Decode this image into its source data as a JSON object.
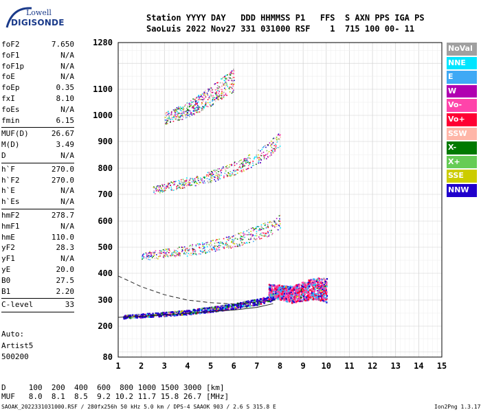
{
  "logo": {
    "line1": "Lowell",
    "line2": "DIGISONDE"
  },
  "header": {
    "line1": "Station YYYY DAY   DDD HHMMSS P1   FFS  S AXN PPS IGA PS",
    "line2": "SaoLuis 2022 Nov27 331 031000 RSF    1  715 100 00- 11"
  },
  "params": [
    {
      "k": "foF2",
      "v": "7.650"
    },
    {
      "k": "foF1",
      "v": "N/A"
    },
    {
      "k": "foF1p",
      "v": "N/A"
    },
    {
      "k": "foE",
      "v": "N/A"
    },
    {
      "k": "foEp",
      "v": "0.35"
    },
    {
      "k": "fxI",
      "v": "8.10"
    },
    {
      "k": "foEs",
      "v": "N/A"
    },
    {
      "k": "fmin",
      "v": "6.15"
    },
    {
      "k": "MUF(D)",
      "v": "26.67"
    },
    {
      "k": "M(D)",
      "v": "3.49"
    },
    {
      "k": "D",
      "v": "N/A"
    },
    {
      "k": "h`F",
      "v": "270.0"
    },
    {
      "k": "h`F2",
      "v": "270.0"
    },
    {
      "k": "h`E",
      "v": "N/A"
    },
    {
      "k": "h`Es",
      "v": "N/A"
    },
    {
      "k": "hmF2",
      "v": "278.7"
    },
    {
      "k": "hmF1",
      "v": "N/A"
    },
    {
      "k": "hmE",
      "v": "110.0"
    },
    {
      "k": "yF2",
      "v": "28.3"
    },
    {
      "k": "yF1",
      "v": "N/A"
    },
    {
      "k": "yE",
      "v": "20.0"
    },
    {
      "k": "B0",
      "v": "27.5"
    },
    {
      "k": "B1",
      "v": "2.20"
    },
    {
      "k": "C-level",
      "v": "33"
    }
  ],
  "auto": {
    "label": "Auto:",
    "artist": "Artist5",
    "code": "500200"
  },
  "legend": [
    {
      "label": "NoVal",
      "color": "#a0a0a0"
    },
    {
      "label": "NNE",
      "color": "#00e5ff"
    },
    {
      "label": "E",
      "color": "#3fa9f5"
    },
    {
      "label": "W",
      "color": "#b000b0"
    },
    {
      "label": "Vo-",
      "color": "#ff44aa"
    },
    {
      "label": "Vo+",
      "color": "#ff0033"
    },
    {
      "label": "SSW",
      "color": "#ffb6a8"
    },
    {
      "label": "X-",
      "color": "#007a00"
    },
    {
      "label": "X+",
      "color": "#66cc55"
    },
    {
      "label": "SSE",
      "color": "#cccc00"
    },
    {
      "label": "NNW",
      "color": "#2000cc"
    }
  ],
  "footer": {
    "dist": "D     100  200  400  600  800 1000 1500 3000 [km]",
    "muf": "MUF   8.0  8.1  8.5  9.2 10.2 11.7 15.8 26.7 [MHz]",
    "info": "SAOAK_2022331031000.RSF / 280fx256h 50 kHz 5.0 km / DPS-4 SAAOK 903 / 2.6 S 315.8 E",
    "version": "Ion2Png 1.3.17"
  },
  "chart_data": {
    "type": "scatter",
    "xlim": [
      1,
      15
    ],
    "ylim": [
      80,
      1280
    ],
    "xticks": [
      "1",
      "2",
      "3",
      "4",
      "5",
      "6",
      "7",
      "8",
      "9",
      "10",
      "11",
      "12",
      "13",
      "14",
      "15"
    ],
    "yticks": [
      "80",
      "200",
      "300",
      "400",
      "500",
      "600",
      "700",
      "800",
      "900",
      "1000",
      "1100",
      "1280"
    ],
    "traces": [
      {
        "name": "F-trace",
        "x": [
          1.2,
          2,
          3,
          4,
          5,
          6,
          7,
          7.5,
          8
        ],
        "y": [
          235,
          240,
          245,
          252,
          262,
          275,
          290,
          300,
          320
        ]
      },
      {
        "name": "F-2hop",
        "x": [
          2,
          3,
          4,
          5,
          6,
          7,
          7.5,
          8
        ],
        "y": [
          460,
          470,
          480,
          495,
          515,
          545,
          560,
          590
        ]
      },
      {
        "name": "F-3hop",
        "x": [
          2.5,
          3,
          4,
          5,
          6,
          7,
          7.5,
          8
        ],
        "y": [
          710,
          720,
          740,
          760,
          790,
          830,
          860,
          900
        ]
      },
      {
        "name": "F-4hop",
        "x": [
          3,
          4,
          5,
          6
        ],
        "y": [
          980,
          1010,
          1060,
          1120
        ]
      },
      {
        "name": "spread-F",
        "x": [
          7.5,
          8,
          8.5,
          9,
          9.5,
          10
        ],
        "y": [
          330,
          320,
          310,
          320,
          330,
          320
        ]
      }
    ],
    "fit_lines": [
      {
        "x": [
          1,
          2,
          3,
          4,
          5,
          6,
          7,
          7.7
        ],
        "y": [
          234,
          238,
          243,
          249,
          256,
          262,
          272,
          286
        ]
      },
      {
        "x": [
          1,
          2,
          3,
          4,
          5,
          6,
          7,
          7.8
        ],
        "y": [
          390,
          350,
          320,
          300,
          290,
          285,
          292,
          300
        ]
      }
    ]
  }
}
